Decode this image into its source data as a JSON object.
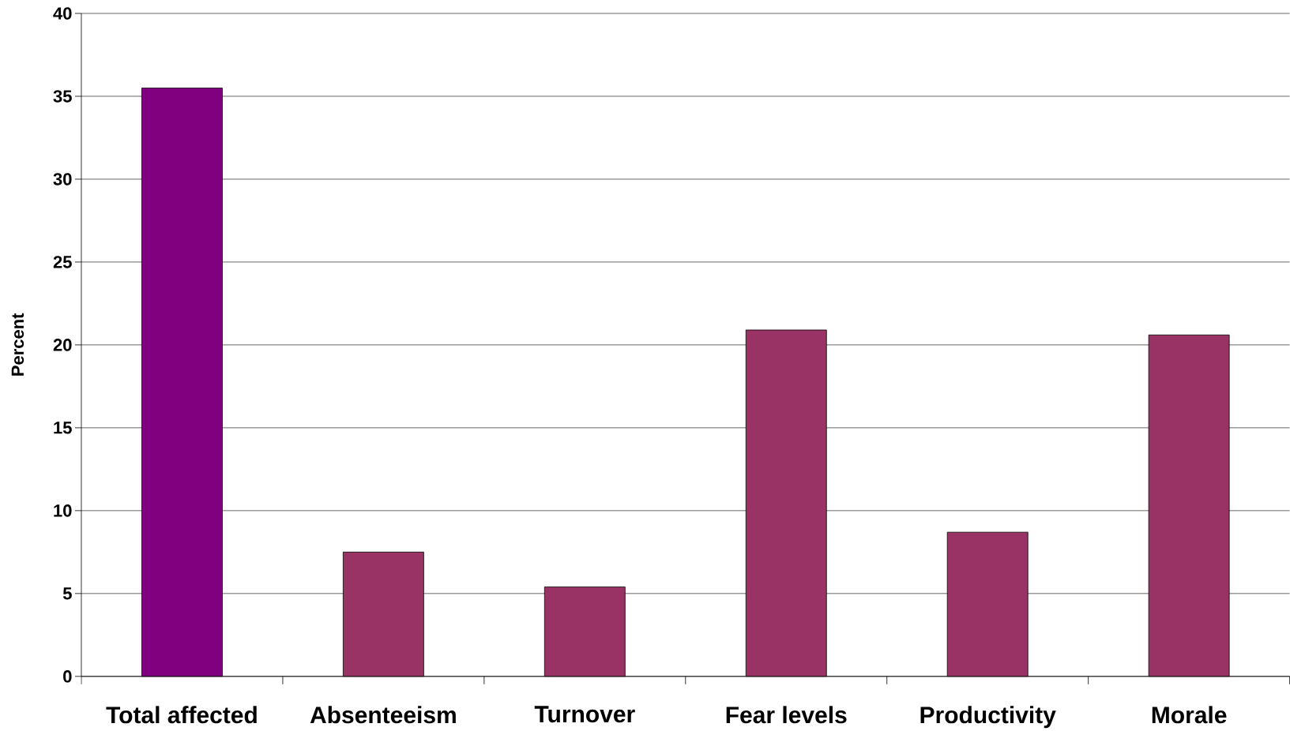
{
  "chart_data": {
    "type": "bar",
    "ylabel": "Percent",
    "categories": [
      "Total affected",
      "Absenteeism",
      "Turnover",
      "Fear levels",
      "Productivity",
      "Morale"
    ],
    "values": [
      35.5,
      7.5,
      5.4,
      20.9,
      8.7,
      20.6
    ],
    "colors": [
      "#800080",
      "#993366",
      "#993366",
      "#993366",
      "#993366",
      "#993366"
    ],
    "ylim": [
      0,
      40
    ],
    "yticks": [
      0,
      5,
      10,
      15,
      20,
      25,
      30,
      35,
      40
    ],
    "grid": "y"
  }
}
